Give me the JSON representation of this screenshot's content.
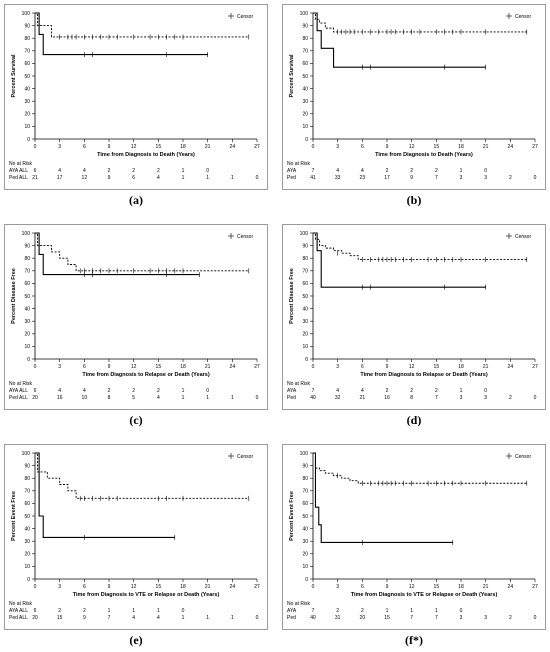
{
  "chart_data": [
    {
      "type": "line",
      "caption": "(a)",
      "legend": "Censor",
      "ylabel": "Percent Survival",
      "xlabel": "Time from Diagnosis to Death (Years)",
      "xlim": [
        0,
        27
      ],
      "ylim": [
        0,
        100
      ],
      "xticks": [
        0,
        3,
        6,
        9,
        12,
        15,
        18,
        21,
        24,
        27
      ],
      "yticks": [
        0,
        10,
        20,
        30,
        40,
        50,
        60,
        70,
        80,
        90,
        100
      ],
      "series": [
        {
          "name": "AYA ALL",
          "style": "solid",
          "x": [
            0,
            0.5,
            1,
            21
          ],
          "y": [
            100,
            83,
            67,
            67
          ],
          "censored": [
            [
              6,
              67
            ],
            [
              7,
              67
            ],
            [
              16,
              67
            ],
            [
              21,
              67
            ]
          ]
        },
        {
          "name": "Ped ALL",
          "style": "dashed",
          "x": [
            0,
            0.3,
            1.5,
            2,
            26
          ],
          "y": [
            100,
            90,
            90,
            81,
            81
          ],
          "censored": [
            [
              3,
              81
            ],
            [
              4,
              81
            ],
            [
              4.5,
              81
            ],
            [
              5,
              81
            ],
            [
              6,
              81
            ],
            [
              7,
              81
            ],
            [
              8,
              81
            ],
            [
              9,
              81
            ],
            [
              10,
              81
            ],
            [
              12,
              81
            ],
            [
              14,
              81
            ],
            [
              15,
              81
            ],
            [
              16,
              81
            ],
            [
              17,
              81
            ],
            [
              18,
              81
            ],
            [
              26,
              81
            ]
          ]
        }
      ],
      "risk": {
        "title": "No at Risk",
        "rows": [
          {
            "label": "AYA ALL",
            "values": [
              "6",
              "4",
              "4",
              "2",
              "2",
              "2",
              "1",
              "0"
            ]
          },
          {
            "label": "Ped ALL",
            "values": [
              "21",
              "17",
              "12",
              "9",
              "6",
              "4",
              "1",
              "1",
              "1",
              "0"
            ]
          }
        ]
      }
    },
    {
      "type": "line",
      "caption": "(b)",
      "legend": "Censor",
      "ylabel": "Percent Survival",
      "xlabel": "Time from Diagnosis to Death (Years)",
      "xlim": [
        0,
        27
      ],
      "ylim": [
        0,
        100
      ],
      "xticks": [
        0,
        3,
        6,
        9,
        12,
        15,
        18,
        21,
        24,
        27
      ],
      "yticks": [
        0,
        10,
        20,
        30,
        40,
        50,
        60,
        70,
        80,
        90,
        100
      ],
      "series": [
        {
          "name": "AYA",
          "style": "solid",
          "x": [
            0,
            0.5,
            1,
            2.5,
            21
          ],
          "y": [
            100,
            86,
            72,
            57,
            57
          ],
          "censored": [
            [
              6,
              57
            ],
            [
              7,
              57
            ],
            [
              16,
              57
            ],
            [
              21,
              57
            ]
          ]
        },
        {
          "name": "Ped",
          "style": "dashed",
          "x": [
            0,
            0.3,
            0.8,
            1.5,
            2.5,
            26
          ],
          "y": [
            100,
            95,
            92,
            88,
            85,
            85
          ],
          "censored": [
            [
              3,
              85
            ],
            [
              3.5,
              85
            ],
            [
              4,
              85
            ],
            [
              4.5,
              85
            ],
            [
              5,
              85
            ],
            [
              6,
              85
            ],
            [
              7,
              85
            ],
            [
              8,
              85
            ],
            [
              9,
              85
            ],
            [
              9.5,
              85
            ],
            [
              10,
              85
            ],
            [
              11,
              85
            ],
            [
              12,
              85
            ],
            [
              13,
              85
            ],
            [
              15,
              85
            ],
            [
              16,
              85
            ],
            [
              17,
              85
            ],
            [
              18,
              85
            ],
            [
              21,
              85
            ],
            [
              26,
              85
            ]
          ]
        }
      ],
      "risk": {
        "title": "No at Risk",
        "rows": [
          {
            "label": "AYA",
            "values": [
              "7",
              "4",
              "4",
              "2",
              "2",
              "2",
              "1",
              "0"
            ]
          },
          {
            "label": "Ped",
            "values": [
              "41",
              "33",
              "23",
              "17",
              "9",
              "7",
              "3",
              "3",
              "2",
              "0"
            ]
          }
        ]
      }
    },
    {
      "type": "line",
      "caption": "(c)",
      "legend": "Censor",
      "ylabel": "Percent Disease Free",
      "xlabel": "Time from Diagnosis to Relapse or Death (Years)",
      "xlim": [
        0,
        27
      ],
      "ylim": [
        0,
        100
      ],
      "xticks": [
        0,
        3,
        6,
        9,
        12,
        15,
        18,
        21,
        24,
        27
      ],
      "yticks": [
        0,
        10,
        20,
        30,
        40,
        50,
        60,
        70,
        80,
        90,
        100
      ],
      "series": [
        {
          "name": "AYA ALL",
          "style": "solid",
          "x": [
            0,
            0.5,
            1,
            20
          ],
          "y": [
            100,
            83,
            67,
            67
          ],
          "censored": [
            [
              6,
              67
            ],
            [
              7,
              67
            ],
            [
              16,
              67
            ],
            [
              20,
              67
            ]
          ]
        },
        {
          "name": "Ped ALL",
          "style": "dashed",
          "x": [
            0,
            0.3,
            2,
            3,
            4,
            5,
            26
          ],
          "y": [
            100,
            90,
            85,
            80,
            75,
            70,
            70
          ],
          "censored": [
            [
              5.5,
              70
            ],
            [
              6,
              70
            ],
            [
              7,
              70
            ],
            [
              8,
              70
            ],
            [
              9,
              70
            ],
            [
              10,
              70
            ],
            [
              12,
              70
            ],
            [
              14,
              70
            ],
            [
              15,
              70
            ],
            [
              16,
              70
            ],
            [
              17,
              70
            ],
            [
              18,
              70
            ],
            [
              26,
              70
            ]
          ]
        }
      ],
      "risk": {
        "title": "No at Risk",
        "rows": [
          {
            "label": "AYA ALL",
            "values": [
              "6",
              "4",
              "4",
              "2",
              "2",
              "2",
              "1",
              "0"
            ]
          },
          {
            "label": "Ped ALL",
            "values": [
              "20",
              "16",
              "10",
              "8",
              "5",
              "4",
              "1",
              "1",
              "1",
              "0"
            ]
          }
        ]
      }
    },
    {
      "type": "line",
      "caption": "(d)",
      "legend": "Censor",
      "ylabel": "Percent Disease Free",
      "xlabel": "Time from Diagnosis to Relapse or Death (Years)",
      "xlim": [
        0,
        27
      ],
      "ylim": [
        0,
        100
      ],
      "xticks": [
        0,
        3,
        6,
        9,
        12,
        15,
        18,
        21,
        24,
        27
      ],
      "yticks": [
        0,
        10,
        20,
        30,
        40,
        50,
        60,
        70,
        80,
        90,
        100
      ],
      "series": [
        {
          "name": "AYA",
          "style": "solid",
          "x": [
            0,
            0.5,
            1,
            21
          ],
          "y": [
            100,
            86,
            57,
            57
          ],
          "censored": [
            [
              6,
              57
            ],
            [
              7,
              57
            ],
            [
              16,
              57
            ],
            [
              21,
              57
            ]
          ]
        },
        {
          "name": "Ped",
          "style": "dashed",
          "x": [
            0,
            0.3,
            0.8,
            1.5,
            2.5,
            3.5,
            4.5,
            5.5,
            26
          ],
          "y": [
            100,
            95,
            90,
            88,
            86,
            84,
            82,
            79,
            79
          ],
          "censored": [
            [
              3,
              84
            ],
            [
              6,
              79
            ],
            [
              7,
              79
            ],
            [
              8,
              79
            ],
            [
              8.5,
              79
            ],
            [
              9,
              79
            ],
            [
              9.5,
              79
            ],
            [
              10,
              79
            ],
            [
              11,
              79
            ],
            [
              12,
              79
            ],
            [
              14,
              79
            ],
            [
              15,
              79
            ],
            [
              16,
              79
            ],
            [
              17,
              79
            ],
            [
              18,
              79
            ],
            [
              21,
              79
            ],
            [
              26,
              79
            ]
          ]
        }
      ],
      "risk": {
        "title": "No at Risk",
        "rows": [
          {
            "label": "AYA",
            "values": [
              "7",
              "4",
              "4",
              "2",
              "2",
              "2",
              "1",
              "0"
            ]
          },
          {
            "label": "Ped",
            "values": [
              "40",
              "32",
              "21",
              "16",
              "8",
              "7",
              "3",
              "3",
              "2",
              "0"
            ]
          }
        ]
      }
    },
    {
      "type": "line",
      "caption": "(e)",
      "legend": "Censor",
      "ylabel": "Percent Event Free",
      "xlabel": "Time from Diagnosis to VTE or Relapse or Death (Years)",
      "xlim": [
        0,
        27
      ],
      "ylim": [
        0,
        100
      ],
      "xticks": [
        0,
        3,
        6,
        9,
        12,
        15,
        18,
        21,
        24,
        27
      ],
      "yticks": [
        0,
        10,
        20,
        30,
        40,
        50,
        60,
        70,
        80,
        90,
        100
      ],
      "series": [
        {
          "name": "AYA ALL",
          "style": "solid",
          "x": [
            0,
            0.5,
            1,
            17
          ],
          "y": [
            100,
            50,
            33,
            33
          ],
          "censored": [
            [
              6,
              33
            ],
            [
              17,
              33
            ]
          ]
        },
        {
          "name": "Ped ALL",
          "style": "dashed",
          "x": [
            0,
            0.3,
            1.5,
            3,
            4,
            5,
            26
          ],
          "y": [
            100,
            85,
            80,
            75,
            70,
            64,
            64
          ],
          "censored": [
            [
              5.5,
              64
            ],
            [
              6,
              64
            ],
            [
              7,
              64
            ],
            [
              8,
              64
            ],
            [
              9,
              64
            ],
            [
              10,
              64
            ],
            [
              15,
              64
            ],
            [
              16,
              64
            ],
            [
              18,
              64
            ],
            [
              26,
              64
            ]
          ]
        }
      ],
      "risk": {
        "title": "No at Risk",
        "rows": [
          {
            "label": "AYA ALL",
            "values": [
              "6",
              "2",
              "2",
              "1",
              "1",
              "1",
              "0"
            ]
          },
          {
            "label": "Ped ALL",
            "values": [
              "20",
              "15",
              "9",
              "7",
              "4",
              "4",
              "1",
              "1",
              "1",
              "0"
            ]
          }
        ]
      }
    },
    {
      "type": "line",
      "caption": "(f*)",
      "legend": "Censor",
      "ylabel": "Percent Event Free",
      "xlabel": "Time from Diagnosis to VTE or Relapse or Death (Years)",
      "xlim": [
        0,
        27
      ],
      "ylim": [
        0,
        100
      ],
      "xticks": [
        0,
        3,
        6,
        9,
        12,
        15,
        18,
        21,
        24,
        27
      ],
      "yticks": [
        0,
        10,
        20,
        30,
        40,
        50,
        60,
        70,
        80,
        90,
        100
      ],
      "series": [
        {
          "name": "AYA",
          "style": "solid",
          "x": [
            0,
            0.3,
            0.7,
            1,
            17
          ],
          "y": [
            100,
            57,
            43,
            29,
            29
          ],
          "censored": [
            [
              6,
              29
            ],
            [
              17,
              29
            ]
          ]
        },
        {
          "name": "Ped",
          "style": "dashed",
          "x": [
            0,
            0.3,
            0.8,
            1.5,
            2.5,
            3.5,
            4.5,
            5.5,
            26
          ],
          "y": [
            100,
            88,
            86,
            84,
            82,
            80,
            78,
            76,
            76
          ],
          "censored": [
            [
              3,
              82
            ],
            [
              6,
              76
            ],
            [
              7,
              76
            ],
            [
              8,
              76
            ],
            [
              8.5,
              76
            ],
            [
              9,
              76
            ],
            [
              9.5,
              76
            ],
            [
              10,
              76
            ],
            [
              11,
              76
            ],
            [
              12,
              76
            ],
            [
              14,
              76
            ],
            [
              15,
              76
            ],
            [
              16,
              76
            ],
            [
              17,
              76
            ],
            [
              18,
              76
            ],
            [
              21,
              76
            ],
            [
              26,
              76
            ]
          ]
        }
      ],
      "risk": {
        "title": "No at Risk",
        "rows": [
          {
            "label": "AYA",
            "values": [
              "7",
              "2",
              "2",
              "1",
              "1",
              "1",
              "0"
            ]
          },
          {
            "label": "Ped",
            "values": [
              "40",
              "31",
              "20",
              "15",
              "7",
              "7",
              "3",
              "3",
              "2",
              "0"
            ]
          }
        ]
      }
    }
  ]
}
